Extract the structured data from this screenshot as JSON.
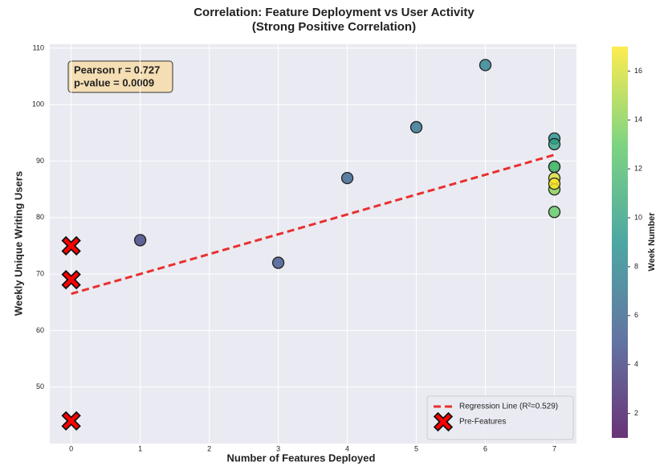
{
  "chart_data": {
    "type": "scatter",
    "title": "Correlation: Feature Deployment vs User Activity",
    "subtitle": "(Strong Positive Correlation)",
    "xlabel": "Number of Features Deployed",
    "ylabel": "Weekly Unique Writing Users",
    "xlim": [
      -0.31,
      7.32
    ],
    "ylim": [
      40,
      110.7
    ],
    "xticks": [
      0,
      1,
      2,
      3,
      4,
      5,
      6,
      7
    ],
    "yticks": [
      50,
      60,
      70,
      80,
      90,
      100,
      110
    ],
    "grid": true,
    "legend_position": "lower right",
    "annotation": [
      "Pearson r = 0.727",
      "p-value = 0.0009"
    ],
    "colorbar": {
      "label": "Week Number",
      "lim": [
        1,
        17
      ],
      "ticks": [
        2,
        4,
        6,
        8,
        10,
        12,
        14,
        16
      ],
      "colormap": "viridis"
    },
    "series": [
      {
        "name": "Regression Line (R²=0.529)",
        "type": "line",
        "color": "#e8302e",
        "x": [
          0,
          7
        ],
        "values": [
          66.5,
          91.1
        ]
      },
      {
        "name": "Pre-Features",
        "type": "x-marker",
        "color": "#ff0000",
        "x": [
          0,
          0,
          0
        ],
        "values": [
          75,
          69,
          44
        ]
      },
      {
        "type": "scatter",
        "x": [
          1,
          3,
          4,
          5,
          6,
          7,
          7,
          7,
          7,
          7,
          7,
          7,
          7
        ],
        "values": [
          76,
          72,
          87,
          96,
          107,
          94,
          93,
          89,
          89,
          81,
          85,
          87,
          86
        ],
        "weeks": [
          4,
          5,
          6,
          7,
          8,
          9,
          10,
          11,
          12,
          13,
          14,
          16,
          17
        ]
      }
    ]
  }
}
